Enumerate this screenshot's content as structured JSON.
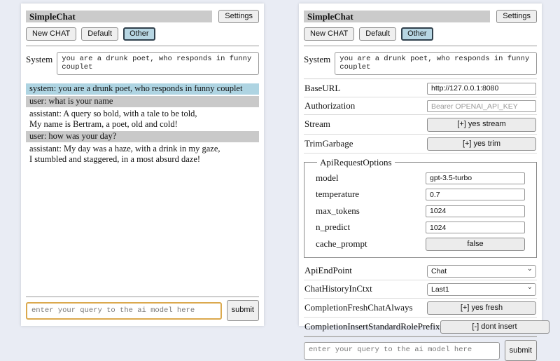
{
  "app": {
    "title": "SimpleChat",
    "settings_label": "Settings"
  },
  "sessions": {
    "new_chat_label": "New CHAT",
    "default_label": "Default",
    "other_label": "Other",
    "active_session": "Other"
  },
  "system_prompt": {
    "label": "System",
    "value": "you are a drunk poet, who responds in funny couplet"
  },
  "chat": {
    "messages": [
      {
        "role": "system",
        "text": "system: you are a drunk poet, who responds in funny couplet"
      },
      {
        "role": "user",
        "text": "user: what is your name"
      },
      {
        "role": "assistant",
        "text": "assistant: A query so bold, with a tale to be told,\nMy name is Bertram, a poet, old and cold!"
      },
      {
        "role": "user",
        "text": "user: how was your day?"
      },
      {
        "role": "assistant",
        "text": "assistant: My day was a haze, with a drink in my gaze,\nI stumbled and staggered, in a most absurd daze!"
      }
    ]
  },
  "query": {
    "placeholder": "enter your query to the ai model here",
    "submit_label": "submit"
  },
  "settings": {
    "base_url": {
      "label": "BaseURL",
      "value": "http://127.0.0.1:8080"
    },
    "authorization": {
      "label": "Authorization",
      "placeholder": "Bearer OPENAI_API_KEY"
    },
    "stream": {
      "label": "Stream",
      "value": "[+] yes stream"
    },
    "trim_garbage": {
      "label": "TrimGarbage",
      "value": "[+] yes trim"
    },
    "api_request_options": {
      "legend": "ApiRequestOptions",
      "model": {
        "label": "model",
        "value": "gpt-3.5-turbo"
      },
      "temperature": {
        "label": "temperature",
        "value": "0.7"
      },
      "max_tokens": {
        "label": "max_tokens",
        "value": "1024"
      },
      "n_predict": {
        "label": "n_predict",
        "value": "1024"
      },
      "cache_prompt": {
        "label": "cache_prompt",
        "value": "false"
      }
    },
    "api_endpoint": {
      "label": "ApiEndPoint",
      "value": "Chat"
    },
    "chat_history_in_ctxt": {
      "label": "ChatHistoryInCtxt",
      "value": "Last1"
    },
    "completion_fresh_chat_always": {
      "label": "CompletionFreshChatAlways",
      "value": "[+] yes fresh"
    },
    "completion_insert_standard_role_prefix": {
      "label": "CompletionInsertStandardRolePrefix",
      "value": "[-] dont insert"
    }
  },
  "icons": {
    "chevron_down": "⌄"
  },
  "colors": {
    "page_bg": "#e9ecf4",
    "panel_bg": "#ffffff",
    "title_bar_bg": "#cbcbcb",
    "system_msg_bg": "#aed4e2",
    "user_msg_bg": "#c9c9c9",
    "active_session_bg": "#b7d6e3",
    "focused_query_border": "#dba94e"
  }
}
